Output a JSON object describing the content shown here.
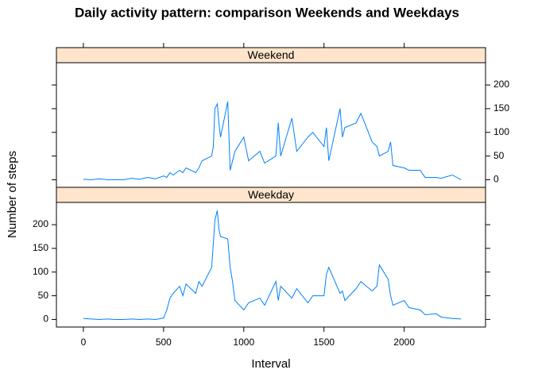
{
  "chart_data": {
    "type": "line",
    "title": "Daily activity pattern: comparison Weekends and Weekdays",
    "x_label": "Interval",
    "y_label": "Number of steps",
    "x": [
      0,
      50,
      100,
      150,
      200,
      250,
      300,
      350,
      400,
      450,
      500,
      520,
      540,
      560,
      600,
      620,
      640,
      700,
      720,
      740,
      800,
      810,
      820,
      835,
      845,
      855,
      900,
      915,
      930,
      945,
      1000,
      1030,
      1100,
      1130,
      1200,
      1215,
      1230,
      1300,
      1330,
      1400,
      1430,
      1500,
      1515,
      1530,
      1600,
      1615,
      1630,
      1700,
      1730,
      1800,
      1830,
      1845,
      1900,
      1915,
      1930,
      2000,
      2030,
      2100,
      2130,
      2200,
      2230,
      2300,
      2355
    ],
    "series": [
      {
        "name": "Weekend",
        "color": "#0080ff",
        "values": [
          1,
          0,
          2,
          0,
          0,
          0,
          3,
          1,
          5,
          2,
          8,
          5,
          15,
          10,
          20,
          15,
          25,
          15,
          25,
          40,
          50,
          70,
          150,
          160,
          120,
          90,
          165,
          20,
          40,
          60,
          90,
          40,
          60,
          35,
          50,
          120,
          50,
          130,
          60,
          90,
          100,
          70,
          110,
          40,
          150,
          90,
          110,
          120,
          140,
          80,
          70,
          50,
          60,
          80,
          30,
          25,
          20,
          20,
          5,
          5,
          3,
          10,
          0
        ]
      },
      {
        "name": "Weekday",
        "color": "#0080ff",
        "values": [
          2,
          1,
          0,
          1,
          0,
          0,
          1,
          0,
          1,
          0,
          3,
          20,
          45,
          55,
          70,
          50,
          75,
          55,
          80,
          70,
          110,
          160,
          210,
          230,
          190,
          175,
          170,
          110,
          80,
          40,
          20,
          35,
          45,
          30,
          80,
          40,
          70,
          45,
          65,
          35,
          50,
          50,
          95,
          110,
          55,
          60,
          40,
          65,
          80,
          60,
          70,
          115,
          85,
          50,
          30,
          40,
          25,
          20,
          10,
          12,
          5,
          2,
          1
        ]
      }
    ],
    "xlim": [
      -168,
      2507
    ],
    "xticks": [
      0,
      500,
      1000,
      1500,
      2000
    ],
    "ylim": [
      -16,
      247
    ],
    "yticks": [
      0,
      50,
      100,
      150,
      200
    ],
    "strip_color": "#ffe5cc"
  }
}
